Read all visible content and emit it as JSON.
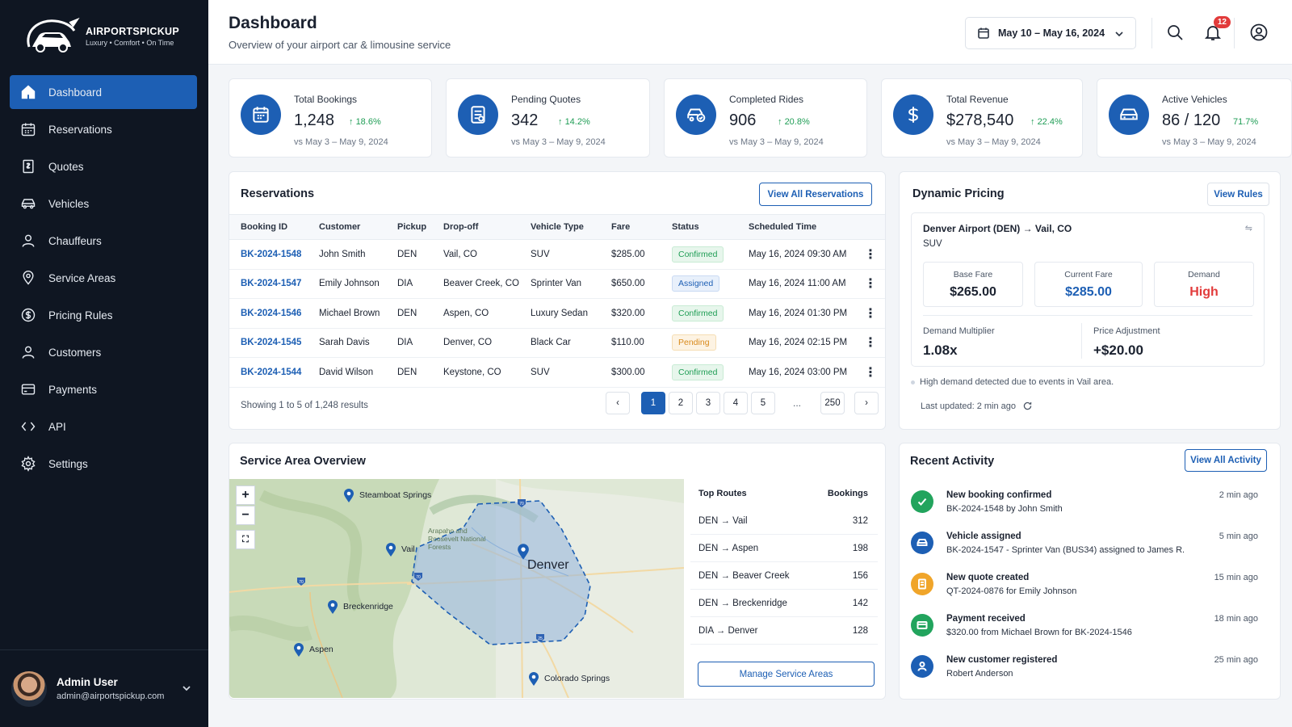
{
  "brand": {
    "name": "AIRPORTSPICKUP",
    "tagline": "Luxury • Comfort • On Time"
  },
  "sidebar": {
    "items": [
      {
        "label": "Dashboard",
        "icon": "home-icon",
        "active": true
      },
      {
        "label": "Reservations",
        "icon": "calendar-icon"
      },
      {
        "label": "Quotes",
        "icon": "quote-icon"
      },
      {
        "label": "Vehicles",
        "icon": "car-icon"
      },
      {
        "label": "Chauffeurs",
        "icon": "person-icon"
      },
      {
        "label": "Service Areas",
        "icon": "location-icon"
      },
      {
        "label": "Pricing Rules",
        "icon": "dollar-icon"
      },
      {
        "label": "Customers",
        "icon": "person-icon"
      },
      {
        "label": "Payments",
        "icon": "card-icon"
      },
      {
        "label": "API",
        "icon": "code-icon"
      },
      {
        "label": "Settings",
        "icon": "gear-icon"
      }
    ],
    "user": {
      "name": "Admin User",
      "email": "admin@airportspickup.com"
    }
  },
  "header": {
    "title": "Dashboard",
    "subtitle": "Overview of your airport car & limousine service",
    "date_range": "May 10 – May 16, 2024",
    "notifications": "12"
  },
  "stats": [
    {
      "label": "Total Bookings",
      "value": "1,248",
      "change": "18.6%",
      "compare": "vs May 3 – May 9, 2024",
      "icon": "calendar-icon"
    },
    {
      "label": "Pending Quotes",
      "value": "342",
      "change": "14.2%",
      "compare": "vs May 3 – May 9, 2024",
      "icon": "quote-icon"
    },
    {
      "label": "Completed Rides",
      "value": "906",
      "change": "20.8%",
      "compare": "vs May 3 – May 9, 2024",
      "icon": "car-check-icon"
    },
    {
      "label": "Total Revenue",
      "value": "$278,540",
      "change": "22.4%",
      "compare": "vs May 3 – May 9, 2024",
      "icon": "dollar-icon"
    },
    {
      "label": "Active Vehicles",
      "value": "86 / 120",
      "change": "71.7%",
      "compare": "vs May 3 – May 9, 2024",
      "icon": "car-icon"
    }
  ],
  "reservations": {
    "title": "Reservations",
    "view_all": "View All Reservations",
    "columns": [
      "Booking ID",
      "Customer",
      "Pickup",
      "Drop-off",
      "Vehicle Type",
      "Fare",
      "Status",
      "Scheduled Time"
    ],
    "rows": [
      {
        "id": "BK-2024-1548",
        "customer": "John Smith",
        "pickup": "DEN",
        "dropoff": "Vail, CO",
        "vehicle": "SUV",
        "fare": "$285.00",
        "status": "Confirmed",
        "time": "May 16, 2024 09:30 AM"
      },
      {
        "id": "BK-2024-1547",
        "customer": "Emily Johnson",
        "pickup": "DIA",
        "dropoff": "Beaver Creek, CO",
        "vehicle": "Sprinter Van",
        "fare": "$650.00",
        "status": "Assigned",
        "time": "May 16, 2024 11:00 AM"
      },
      {
        "id": "BK-2024-1546",
        "customer": "Michael Brown",
        "pickup": "DEN",
        "dropoff": "Aspen, CO",
        "vehicle": "Luxury Sedan",
        "fare": "$320.00",
        "status": "Confirmed",
        "time": "May 16, 2024 01:30 PM"
      },
      {
        "id": "BK-2024-1545",
        "customer": "Sarah Davis",
        "pickup": "DIA",
        "dropoff": "Denver, CO",
        "vehicle": "Black Car",
        "fare": "$110.00",
        "status": "Pending",
        "time": "May 16, 2024 02:15 PM"
      },
      {
        "id": "BK-2024-1544",
        "customer": "David Wilson",
        "pickup": "DEN",
        "dropoff": "Keystone, CO",
        "vehicle": "SUV",
        "fare": "$300.00",
        "status": "Confirmed",
        "time": "May 16, 2024 03:00 PM"
      }
    ],
    "showing": "Showing 1 to 5 of 1,248 results",
    "pages": [
      "1",
      "2",
      "3",
      "4",
      "5"
    ],
    "ellipsis": "...",
    "last_page": "250"
  },
  "pricing": {
    "title": "Dynamic Pricing",
    "view_rules": "View Rules",
    "route": "Denver Airport (DEN) → Vail, CO",
    "vehicle": "SUV",
    "base_label": "Base Fare",
    "base_value": "$265.00",
    "current_label": "Current Fare",
    "current_value": "$285.00",
    "demand_label": "Demand",
    "demand_value": "High",
    "multiplier_label": "Demand Multiplier",
    "multiplier_value": "1.08x",
    "adjust_label": "Price Adjustment",
    "adjust_value": "+$20.00",
    "note": "High demand detected due to events in Vail area.",
    "updated": "Last updated: 2 min ago"
  },
  "service_area": {
    "title": "Service Area Overview",
    "map_city": "Denver",
    "map_places": [
      "Steamboat Springs",
      "Vail",
      "Breckenridge",
      "Aspen",
      "Colorado Springs"
    ],
    "forest_label": "Arapaho and Roosevelt National Forests",
    "routes_header": "Top Routes",
    "bookings_header": "Bookings",
    "routes": [
      {
        "from": "DEN",
        "to": "Vail",
        "count": "312"
      },
      {
        "from": "DEN",
        "to": "Aspen",
        "count": "198"
      },
      {
        "from": "DEN",
        "to": "Beaver Creek",
        "count": "156"
      },
      {
        "from": "DEN",
        "to": "Breckenridge",
        "count": "142"
      },
      {
        "from": "DIA",
        "to": "Denver",
        "count": "128"
      }
    ],
    "manage": "Manage Service Areas"
  },
  "activity": {
    "title": "Recent Activity",
    "view_all": "View All Activity",
    "items": [
      {
        "title": "New booking confirmed",
        "desc": "BK-2024-1548 by John Smith",
        "time": "2 min ago",
        "color": "#22a45d",
        "icon": "check-icon"
      },
      {
        "title": "Vehicle assigned",
        "desc": "BK-2024-1547 - Sprinter Van (BUS34) assigned to James R.",
        "time": "5 min ago",
        "color": "#1d5fb4",
        "icon": "car-icon"
      },
      {
        "title": "New quote created",
        "desc": "QT-2024-0876 for Emily Johnson",
        "time": "15 min ago",
        "color": "#f0a52a",
        "icon": "quote-icon"
      },
      {
        "title": "Payment received",
        "desc": "$320.00 from Michael Brown for BK-2024-1546",
        "time": "18 min ago",
        "color": "#22a45d",
        "icon": "card-icon"
      },
      {
        "title": "New customer registered",
        "desc": "Robert Anderson",
        "time": "25 min ago",
        "color": "#1d5fb4",
        "icon": "person-icon"
      }
    ]
  },
  "colors": {
    "sidebar": "#0f1622",
    "accent": "#1d5fb4",
    "positive": "#1f9d55",
    "demand_high": "#e23b3b"
  }
}
